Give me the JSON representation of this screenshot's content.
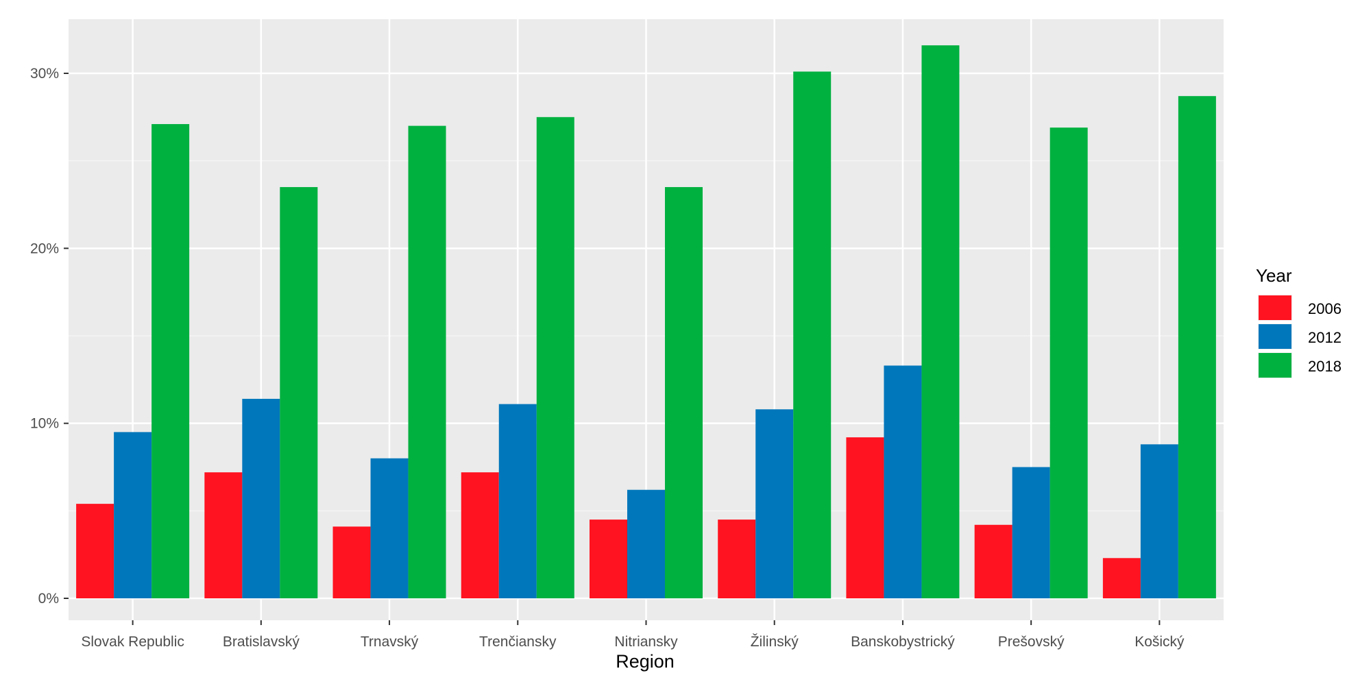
{
  "chart_data": {
    "type": "bar",
    "title": "",
    "xlabel": "Region",
    "ylabel": "",
    "ylim": [
      0,
      0.32
    ],
    "yticks": [
      0,
      0.1,
      0.2,
      0.3
    ],
    "ytick_labels": [
      "0%",
      "10%",
      "20%",
      "30%"
    ],
    "grid": true,
    "categories": [
      "Slovak Republic",
      "Bratislavský",
      "Trnavský",
      "Trenčiansky",
      "Nitriansky",
      "Žilinský",
      "Banskobystrický",
      "Prešovský",
      "Košický"
    ],
    "series": [
      {
        "name": "2006",
        "color": "#FF1320",
        "values": [
          0.054,
          0.072,
          0.041,
          0.072,
          0.045,
          0.045,
          0.092,
          0.042,
          0.023
        ]
      },
      {
        "name": "2012",
        "color": "#0077BB",
        "values": [
          0.095,
          0.114,
          0.08,
          0.111,
          0.062,
          0.108,
          0.133,
          0.075,
          0.088
        ]
      },
      {
        "name": "2018",
        "color": "#00B140",
        "values": [
          0.271,
          0.235,
          0.27,
          0.275,
          0.235,
          0.301,
          0.316,
          0.269,
          0.287
        ]
      }
    ],
    "legend": {
      "title": "Year",
      "placement": "right"
    }
  }
}
